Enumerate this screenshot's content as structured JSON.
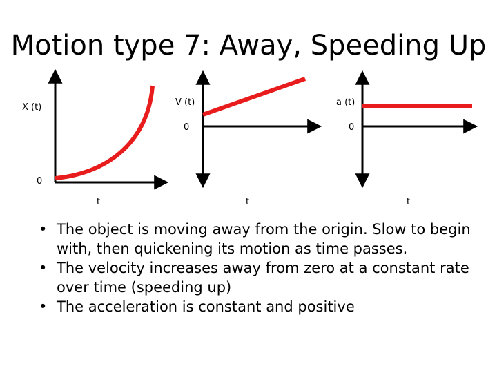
{
  "slide": {
    "title": "Motion type 7: Away, Speeding Up",
    "bullets": [
      "The object is moving away from the origin. Slow to begin with, then quickening its motion as time passes.",
      "The velocity increases away from zero at a constant rate over time (speeding up)",
      "The acceleration is constant and positive"
    ]
  },
  "graphs": {
    "position": {
      "y_label": "X (t)",
      "x_label": "t",
      "origin_label": "0",
      "curve": "increasing, concave up"
    },
    "velocity": {
      "y_label": "V (t)",
      "x_label": "t",
      "zero_label": "0",
      "curve": "increasing straight line"
    },
    "acceleration": {
      "y_label": "a (t)",
      "x_label": "t",
      "zero_label": "0",
      "curve": "constant positive horizontal line"
    }
  },
  "colors": {
    "curve": "#e81c1c",
    "axis": "#000000",
    "background": "#ffffff"
  }
}
